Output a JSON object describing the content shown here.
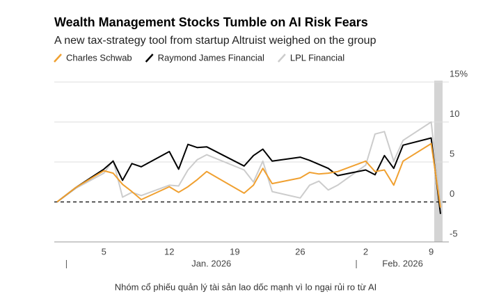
{
  "chart_data": {
    "type": "line",
    "title": "Wealth Management Stocks Tumble on AI Risk Fears",
    "subtitle": "A new tax-strategy tool from startup Altruist weighed on the group",
    "x": [
      "2025-12-31",
      "2026-01-02",
      "2026-01-05",
      "2026-01-06",
      "2026-01-07",
      "2026-01-08",
      "2026-01-09",
      "2026-01-12",
      "2026-01-13",
      "2026-01-14",
      "2026-01-15",
      "2026-01-16",
      "2026-01-20",
      "2026-01-21",
      "2026-01-22",
      "2026-01-23",
      "2026-01-26",
      "2026-01-27",
      "2026-01-28",
      "2026-01-29",
      "2026-01-30",
      "2026-02-02",
      "2026-02-03",
      "2026-02-04",
      "2026-02-05",
      "2026-02-06",
      "2026-02-09",
      "2026-02-10"
    ],
    "series": [
      {
        "name": "Charles Schwab",
        "color": "#f0a030",
        "values": [
          0,
          1.8,
          3.9,
          3.6,
          2.2,
          1.3,
          0.3,
          1.9,
          1.2,
          1.9,
          2.8,
          3.8,
          1.1,
          2.1,
          4.2,
          2.3,
          3.0,
          3.7,
          3.5,
          3.6,
          3.8,
          5.1,
          3.8,
          4.0,
          2.1,
          5.1,
          7.3,
          -0.7
        ]
      },
      {
        "name": "Raymond James Financial",
        "color": "#000000",
        "values": [
          0,
          1.8,
          4.1,
          5.1,
          2.7,
          4.8,
          4.4,
          6.3,
          4.1,
          7.2,
          6.8,
          6.9,
          4.5,
          5.8,
          6.6,
          5.1,
          5.6,
          5.2,
          4.7,
          4.2,
          3.3,
          4.0,
          3.4,
          5.8,
          4.2,
          7.1,
          8.0,
          -1.5
        ]
      },
      {
        "name": "LPL Financial",
        "color": "#cccccc",
        "values": [
          0,
          1.7,
          3.6,
          5.2,
          0.6,
          1.2,
          0.8,
          2.1,
          2.0,
          4.0,
          5.3,
          5.9,
          4.0,
          2.5,
          5.1,
          1.3,
          0.5,
          2.1,
          2.6,
          1.5,
          2.1,
          4.6,
          8.5,
          8.8,
          5.1,
          7.7,
          10.0,
          -0.3
        ]
      }
    ],
    "xlim": [
      "2025-12-31",
      "2026-02-10"
    ],
    "xticks": [
      {
        "value": "2026-01-05",
        "label": "5"
      },
      {
        "value": "2026-01-12",
        "label": "12"
      },
      {
        "value": "2026-01-19",
        "label": "19"
      },
      {
        "value": "2026-01-26",
        "label": "26"
      },
      {
        "value": "2026-02-02",
        "label": "2"
      },
      {
        "value": "2026-02-09",
        "label": "9"
      }
    ],
    "months": [
      {
        "value": "2026-01-01",
        "label": "Jan. 2026"
      },
      {
        "value": "2026-02-01",
        "label": "Feb. 2026"
      }
    ],
    "ylim": [
      -5,
      15
    ],
    "yticks": [
      -5,
      0,
      5,
      10,
      {
        "value": 15,
        "label": "15%"
      }
    ],
    "grid": true,
    "highlight_x": "2026-02-10"
  },
  "caption": "Nhóm cổ phiếu quản lý tài sản lao dốc mạnh vì lo ngại rủi ro từ AI"
}
